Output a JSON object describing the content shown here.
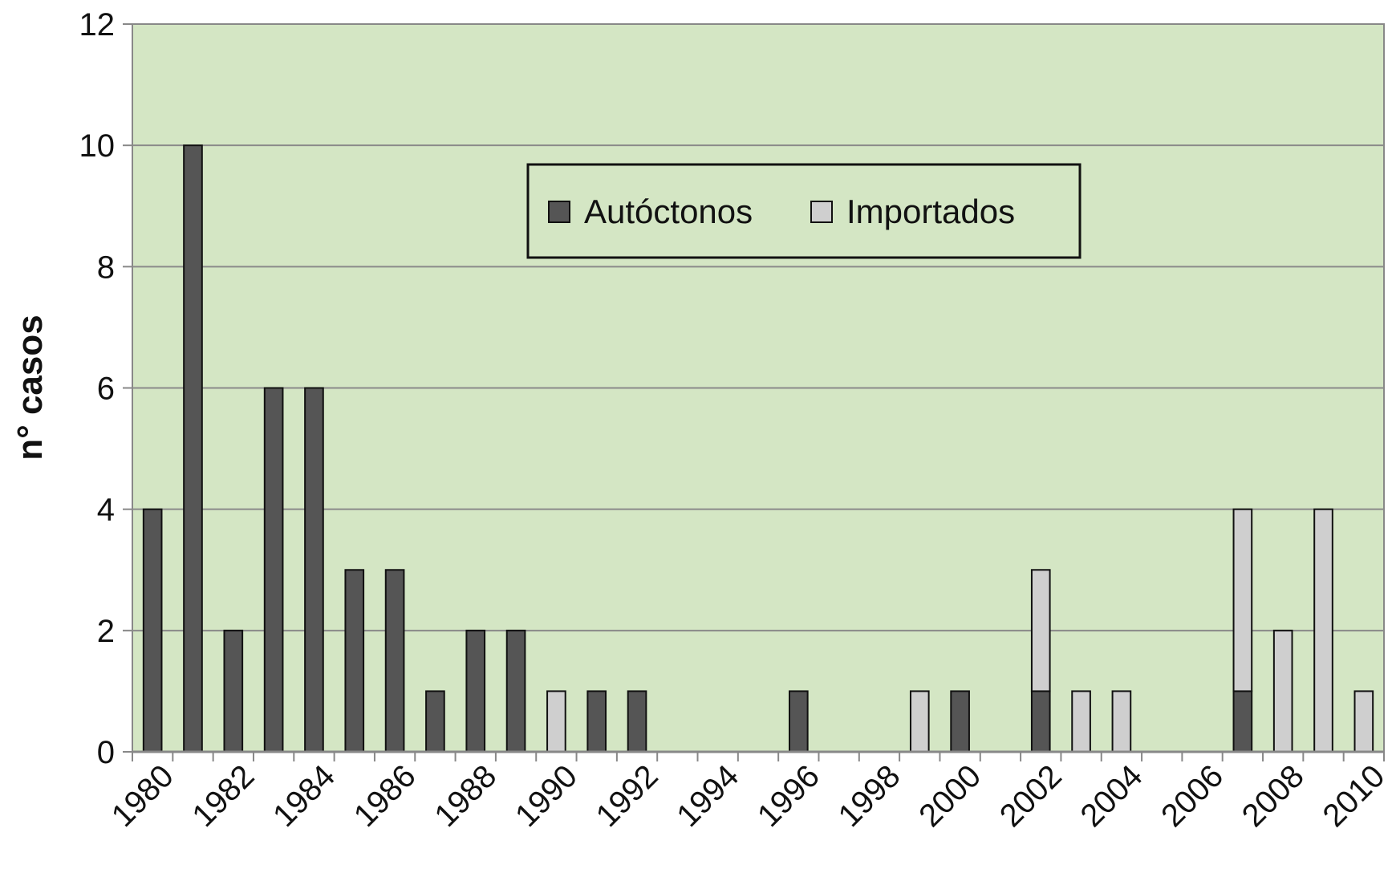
{
  "chart_data": {
    "type": "bar",
    "stacked": true,
    "title": "",
    "xlabel": "",
    "ylabel": "n° casos",
    "ylim": [
      0,
      12
    ],
    "yticks": [
      "0",
      "2",
      "4",
      "6",
      "8",
      "10",
      "12"
    ],
    "categories": [
      "1980",
      "1981",
      "1982",
      "1983",
      "1984",
      "1985",
      "1986",
      "1987",
      "1988",
      "1989",
      "1990",
      "1991",
      "1992",
      "1993",
      "1994",
      "1995",
      "1996",
      "1997",
      "1998",
      "1999",
      "2000",
      "2001",
      "2002",
      "2003",
      "2004",
      "2005",
      "2006",
      "2007",
      "2008",
      "2009",
      "2010"
    ],
    "xtick_labels": [
      "1980",
      "1982",
      "1984",
      "1986",
      "1988",
      "1990",
      "1992",
      "1994",
      "1996",
      "1998",
      "2000",
      "2002",
      "2004",
      "2006",
      "2008",
      "2010"
    ],
    "series": [
      {
        "name": "Autóctonos",
        "color": "#555555",
        "values": [
          4,
          10,
          2,
          6,
          6,
          3,
          3,
          1,
          2,
          2,
          0,
          1,
          1,
          0,
          0,
          0,
          1,
          0,
          0,
          0,
          1,
          0,
          1,
          0,
          0,
          0,
          0,
          1,
          0,
          0,
          0
        ]
      },
      {
        "name": "Importados",
        "color": "#cfcfcf",
        "values": [
          0,
          0,
          0,
          0,
          0,
          0,
          0,
          0,
          0,
          0,
          1,
          0,
          0,
          0,
          0,
          0,
          0,
          0,
          0,
          1,
          0,
          0,
          2,
          1,
          1,
          0,
          0,
          3,
          2,
          4,
          1
        ]
      }
    ],
    "grid": true,
    "background_color": "#d4e6c4",
    "legend_position": "top-center"
  }
}
